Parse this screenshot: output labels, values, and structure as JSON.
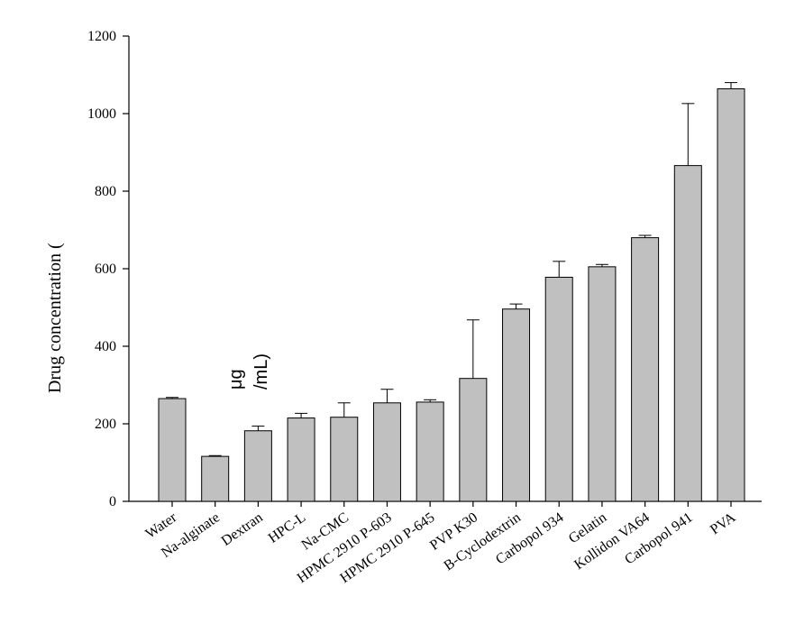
{
  "chart_data": {
    "type": "bar",
    "ylabel": "Drug concentration (",
    "ylabel_unit_line1": "μg",
    "ylabel_unit_line2": "/mL)",
    "ylim": [
      0,
      1200
    ],
    "yticks": [
      0,
      200,
      400,
      600,
      800,
      1000,
      1200
    ],
    "grid": false,
    "categories": [
      "Water",
      "Na-alginate",
      "Dextran",
      "HPC-L",
      "Na-CMC",
      "HPMC 2910 P-603",
      "HPMC 2910 P-645",
      "PVP K30",
      "B-Cyclodextrin",
      "Carbopol 934",
      "Gelatin",
      "Kollidon VA64",
      "Carbopol 941",
      "PVA"
    ],
    "values": [
      265,
      116,
      182,
      215,
      217,
      254,
      256,
      317,
      496,
      578,
      605,
      680,
      866,
      1064
    ],
    "error_upper": [
      268,
      118,
      194,
      227,
      254,
      289,
      262,
      468,
      509,
      619,
      611,
      686,
      1026,
      1080
    ],
    "colors": {
      "bar_fill": "#c0c0c0",
      "bar_stroke": "#000000",
      "axis": "#000000"
    }
  }
}
